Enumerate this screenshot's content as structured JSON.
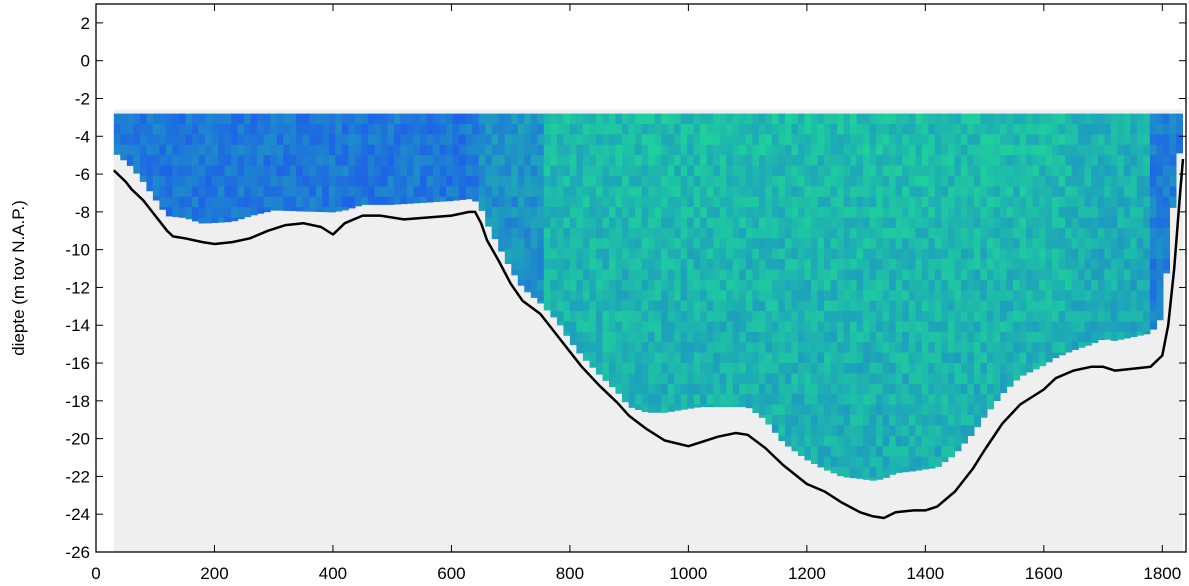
{
  "chart_data": {
    "type": "heatmap",
    "title": "",
    "xlabel": "",
    "ylabel": "diepte (m tov N.A.P.)",
    "xlim": [
      0,
      1840
    ],
    "ylim": [
      -26,
      3
    ],
    "x_ticks": [
      0,
      200,
      400,
      600,
      800,
      1000,
      1200,
      1400,
      1600,
      1800
    ],
    "y_ticks": [
      2,
      0,
      -2,
      -4,
      -6,
      -8,
      -10,
      -12,
      -14,
      -16,
      -18,
      -20,
      -22,
      -24,
      -26
    ],
    "grid": false,
    "legend": "none",
    "water_surface_depth": -2.8,
    "colors": {
      "background_fill": "#efefef",
      "plot_background": "#ffffff",
      "bed_line": "#000000",
      "data_low": "#1e64e6",
      "data_high": "#1ee68c"
    },
    "heatmap_zones": [
      {
        "x": [
          30,
          650
        ],
        "level": 0.15
      },
      {
        "x": [
          650,
          760
        ],
        "level": 0.35
      },
      {
        "x": [
          760,
          1650
        ],
        "level": 0.68
      },
      {
        "x": [
          1650,
          1780
        ],
        "level": 0.6
      },
      {
        "x": [
          1780,
          1840
        ],
        "level": 0.2
      }
    ],
    "bed_profile": {
      "x": [
        30,
        40,
        50,
        60,
        80,
        100,
        120,
        130,
        150,
        180,
        200,
        230,
        260,
        290,
        320,
        350,
        380,
        400,
        420,
        450,
        480,
        520,
        560,
        600,
        630,
        640,
        650,
        660,
        680,
        700,
        720,
        750,
        780,
        800,
        820,
        850,
        880,
        900,
        930,
        960,
        1000,
        1020,
        1050,
        1080,
        1100,
        1130,
        1160,
        1200,
        1230,
        1260,
        1290,
        1310,
        1330,
        1350,
        1380,
        1400,
        1420,
        1450,
        1480,
        1500,
        1530,
        1560,
        1580,
        1600,
        1620,
        1650,
        1680,
        1700,
        1720,
        1750,
        1780,
        1800,
        1810,
        1820,
        1830,
        1835
      ],
      "y": [
        -5.8,
        -6.1,
        -6.4,
        -6.8,
        -7.4,
        -8.2,
        -9.0,
        -9.3,
        -9.4,
        -9.6,
        -9.7,
        -9.6,
        -9.4,
        -9.0,
        -8.7,
        -8.6,
        -8.8,
        -9.2,
        -8.6,
        -8.2,
        -8.2,
        -8.4,
        -8.3,
        -8.2,
        -8.0,
        -8.0,
        -8.6,
        -9.5,
        -10.6,
        -11.8,
        -12.7,
        -13.4,
        -14.6,
        -15.4,
        -16.2,
        -17.2,
        -18.1,
        -18.8,
        -19.5,
        -20.1,
        -20.4,
        -20.2,
        -19.9,
        -19.7,
        -19.8,
        -20.5,
        -21.4,
        -22.4,
        -22.8,
        -23.4,
        -23.9,
        -24.1,
        -24.2,
        -23.9,
        -23.8,
        -23.8,
        -23.6,
        -22.8,
        -21.6,
        -20.6,
        -19.2,
        -18.2,
        -17.8,
        -17.4,
        -16.8,
        -16.4,
        -16.2,
        -16.2,
        -16.4,
        -16.3,
        -16.2,
        -15.6,
        -14.0,
        -11.0,
        -7.0,
        -5.2
      ]
    },
    "data_bottom": {
      "x": [
        30,
        60,
        80,
        100,
        120,
        150,
        180,
        230,
        260,
        300,
        400,
        420,
        450,
        500,
        550,
        600,
        630,
        640,
        650,
        660,
        680,
        700,
        720,
        750,
        780,
        800,
        820,
        850,
        880,
        900,
        930,
        960,
        1000,
        1020,
        1050,
        1080,
        1100,
        1130,
        1160,
        1200,
        1230,
        1260,
        1290,
        1310,
        1330,
        1350,
        1380,
        1400,
        1420,
        1450,
        1480,
        1500,
        1530,
        1560,
        1580,
        1600,
        1620,
        1650,
        1680,
        1700,
        1720,
        1750,
        1780,
        1800,
        1810,
        1820,
        1830
      ],
      "y": [
        -4.8,
        -5.6,
        -6.4,
        -7.3,
        -8.2,
        -8.3,
        -8.6,
        -8.5,
        -8.2,
        -7.9,
        -8.0,
        -7.9,
        -7.6,
        -7.6,
        -7.5,
        -7.4,
        -7.3,
        -7.4,
        -7.8,
        -8.6,
        -9.8,
        -11.0,
        -12.0,
        -12.8,
        -13.8,
        -14.8,
        -15.6,
        -16.6,
        -17.5,
        -18.3,
        -18.6,
        -18.6,
        -18.4,
        -18.3,
        -18.3,
        -18.3,
        -18.3,
        -19.0,
        -20.2,
        -21.1,
        -21.6,
        -22.0,
        -22.1,
        -22.2,
        -22.1,
        -21.8,
        -21.7,
        -21.6,
        -21.5,
        -20.8,
        -19.7,
        -18.8,
        -17.6,
        -16.7,
        -16.4,
        -16.1,
        -15.7,
        -15.3,
        -15.0,
        -14.7,
        -14.8,
        -14.6,
        -14.4,
        -13.5,
        -10.0,
        -7.0,
        -4.5
      ]
    }
  }
}
